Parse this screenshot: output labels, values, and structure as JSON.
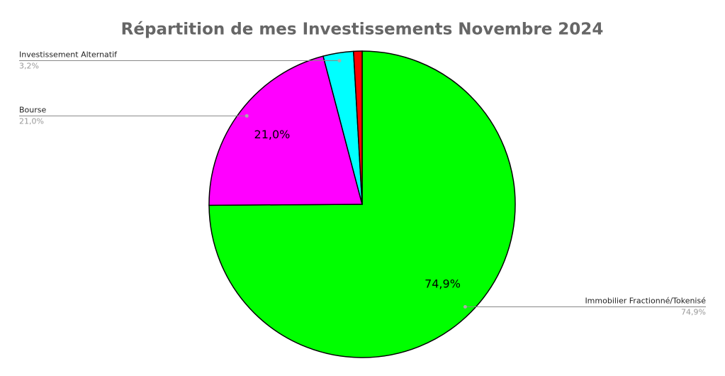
{
  "chart_data": {
    "type": "pie",
    "title": "Répartition de mes Investissements Novembre 2024",
    "categories": [
      "Immobilier Fractionné/Tokenisé",
      "Bourse",
      "Investissement Alternatif",
      null
    ],
    "values": [
      74.9,
      21.0,
      3.2,
      0.9
    ],
    "value_labels": [
      "74,9%",
      "21,0%",
      "3,2%",
      null
    ],
    "colors": [
      "#00ff00",
      "#ff00ff",
      "#00ffff",
      "#ff0000"
    ]
  }
}
